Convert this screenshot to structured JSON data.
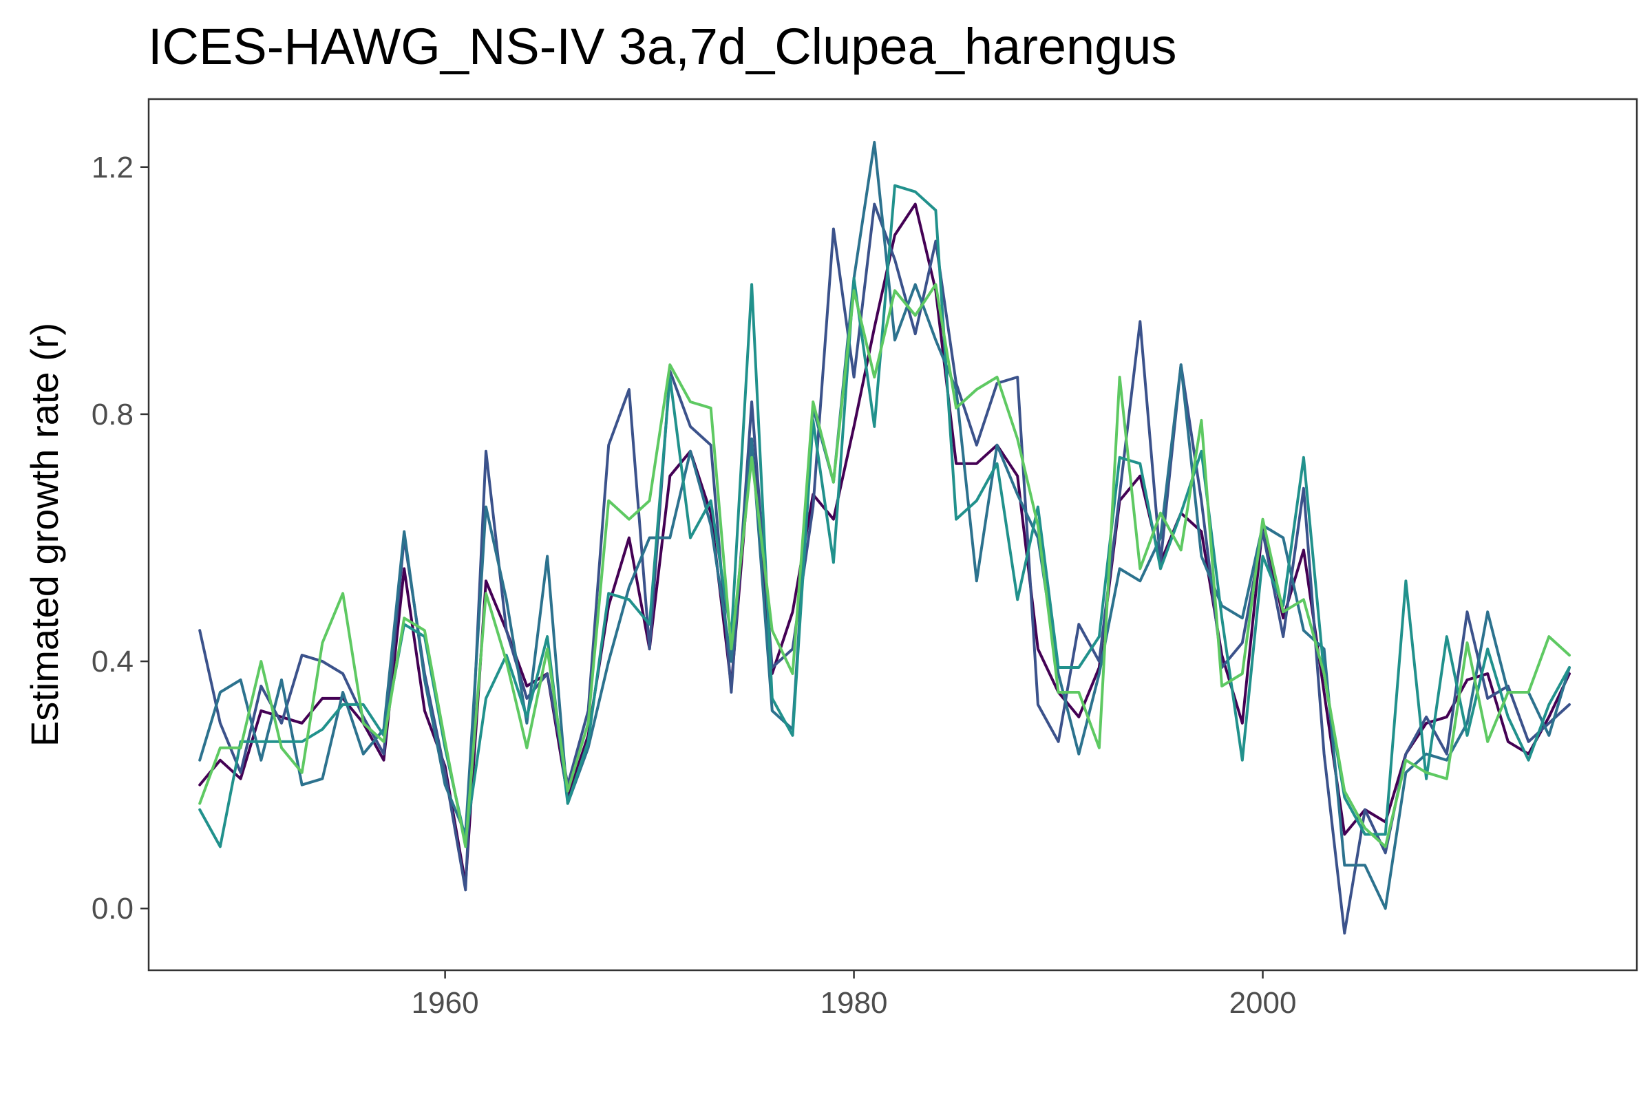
{
  "chart_data": {
    "type": "line",
    "title": "ICES-HAWG_NS-IV 3a,7d_Clupea_harengus",
    "xlabel": "",
    "ylabel": "Estimated growth rate (r)",
    "xlim": [
      1945.5,
      2018.3
    ],
    "ylim": [
      -0.1,
      1.31
    ],
    "x_ticks": [
      1960,
      1980,
      2000
    ],
    "y_ticks": [
      0.0,
      0.4,
      0.8,
      1.2
    ],
    "y_tick_labels": [
      "0.0",
      "0.4",
      "0.8",
      "1.2"
    ],
    "grid": false,
    "legend": "none",
    "x": [
      1948,
      1949,
      1950,
      1951,
      1952,
      1953,
      1954,
      1955,
      1956,
      1957,
      1958,
      1959,
      1960,
      1961,
      1962,
      1963,
      1964,
      1965,
      1966,
      1967,
      1968,
      1969,
      1970,
      1971,
      1972,
      1973,
      1974,
      1975,
      1976,
      1977,
      1978,
      1979,
      1980,
      1981,
      1982,
      1983,
      1984,
      1985,
      1986,
      1987,
      1988,
      1989,
      1990,
      1991,
      1992,
      1993,
      1994,
      1995,
      1996,
      1997,
      1998,
      1999,
      2000,
      2001,
      2002,
      2003,
      2004,
      2005,
      2006,
      2007,
      2008,
      2009,
      2010,
      2011,
      2012,
      2013,
      2014,
      2015
    ],
    "series": [
      {
        "color": "#440154",
        "values": [
          0.2,
          0.24,
          0.21,
          0.32,
          0.31,
          0.3,
          0.34,
          0.34,
          0.3,
          0.24,
          0.55,
          0.32,
          0.23,
          0.04,
          0.53,
          0.45,
          0.36,
          0.38,
          0.18,
          0.28,
          0.49,
          0.6,
          0.42,
          0.7,
          0.74,
          0.64,
          0.36,
          0.76,
          0.38,
          0.48,
          0.67,
          0.63,
          0.78,
          0.94,
          1.09,
          1.14,
          1.0,
          0.72,
          0.72,
          0.75,
          0.7,
          0.42,
          0.35,
          0.31,
          0.39,
          0.66,
          0.7,
          0.56,
          0.64,
          0.61,
          0.41,
          0.3,
          0.62,
          0.47,
          0.58,
          0.35,
          0.12,
          0.16,
          0.14,
          0.25,
          0.3,
          0.31,
          0.37,
          0.38,
          0.27,
          0.25,
          0.31,
          0.38
        ]
      },
      {
        "color": "#3b528b",
        "values": [
          0.45,
          0.3,
          0.22,
          0.36,
          0.3,
          0.41,
          0.4,
          0.38,
          0.31,
          0.25,
          0.6,
          0.38,
          0.22,
          0.03,
          0.74,
          0.45,
          0.34,
          0.38,
          0.2,
          0.32,
          0.75,
          0.84,
          0.42,
          0.87,
          0.78,
          0.75,
          0.35,
          0.82,
          0.39,
          0.42,
          0.65,
          1.1,
          0.86,
          1.14,
          1.05,
          0.93,
          1.08,
          0.85,
          0.75,
          0.85,
          0.86,
          0.33,
          0.27,
          0.46,
          0.4,
          0.67,
          0.95,
          0.56,
          0.88,
          0.66,
          0.39,
          0.43,
          0.61,
          0.44,
          0.68,
          0.25,
          -0.04,
          0.16,
          0.09,
          0.25,
          0.31,
          0.25,
          0.48,
          0.34,
          0.36,
          0.27,
          0.3,
          0.33
        ]
      },
      {
        "color": "#2c728e",
        "values": [
          0.24,
          0.35,
          0.37,
          0.24,
          0.37,
          0.2,
          0.21,
          0.35,
          0.25,
          0.29,
          0.61,
          0.37,
          0.2,
          0.12,
          0.65,
          0.5,
          0.3,
          0.57,
          0.17,
          0.26,
          0.4,
          0.52,
          0.6,
          0.6,
          0.74,
          0.62,
          0.4,
          0.76,
          0.32,
          0.29,
          0.81,
          0.69,
          1.02,
          1.24,
          0.92,
          1.01,
          0.92,
          0.84,
          0.53,
          0.75,
          0.67,
          0.6,
          0.38,
          0.25,
          0.38,
          0.55,
          0.53,
          0.6,
          0.88,
          0.57,
          0.49,
          0.47,
          0.62,
          0.6,
          0.45,
          0.42,
          0.07,
          0.07,
          0.0,
          0.22,
          0.25,
          0.24,
          0.3,
          0.48,
          0.35,
          0.35,
          0.28,
          0.39
        ]
      },
      {
        "color": "#21918c",
        "values": [
          0.16,
          0.1,
          0.27,
          0.27,
          0.27,
          0.27,
          0.29,
          0.33,
          0.33,
          0.28,
          0.46,
          0.44,
          0.26,
          0.11,
          0.34,
          0.41,
          0.31,
          0.44,
          0.17,
          0.27,
          0.51,
          0.5,
          0.46,
          0.86,
          0.6,
          0.66,
          0.44,
          1.01,
          0.34,
          0.28,
          0.79,
          0.56,
          1.02,
          0.78,
          1.17,
          1.16,
          1.13,
          0.63,
          0.66,
          0.72,
          0.5,
          0.65,
          0.39,
          0.39,
          0.44,
          0.73,
          0.72,
          0.55,
          0.64,
          0.74,
          0.47,
          0.24,
          0.57,
          0.49,
          0.73,
          0.38,
          0.18,
          0.12,
          0.12,
          0.53,
          0.21,
          0.44,
          0.28,
          0.42,
          0.31,
          0.24,
          0.33,
          0.39
        ]
      },
      {
        "color": "#5ec962",
        "values": [
          0.17,
          0.26,
          0.26,
          0.4,
          0.26,
          0.22,
          0.43,
          0.51,
          0.3,
          0.27,
          0.47,
          0.45,
          0.27,
          0.1,
          0.51,
          0.4,
          0.26,
          0.42,
          0.19,
          0.3,
          0.66,
          0.63,
          0.66,
          0.88,
          0.82,
          0.81,
          0.42,
          0.73,
          0.45,
          0.38,
          0.82,
          0.69,
          1.0,
          0.86,
          1.0,
          0.96,
          1.01,
          0.81,
          0.84,
          0.86,
          0.76,
          0.62,
          0.35,
          0.35,
          0.26,
          0.86,
          0.55,
          0.64,
          0.58,
          0.79,
          0.36,
          0.38,
          0.63,
          0.48,
          0.5,
          0.38,
          0.19,
          0.13,
          0.1,
          0.24,
          0.22,
          0.21,
          0.43,
          0.27,
          0.35,
          0.35,
          0.44,
          0.41
        ]
      }
    ]
  }
}
